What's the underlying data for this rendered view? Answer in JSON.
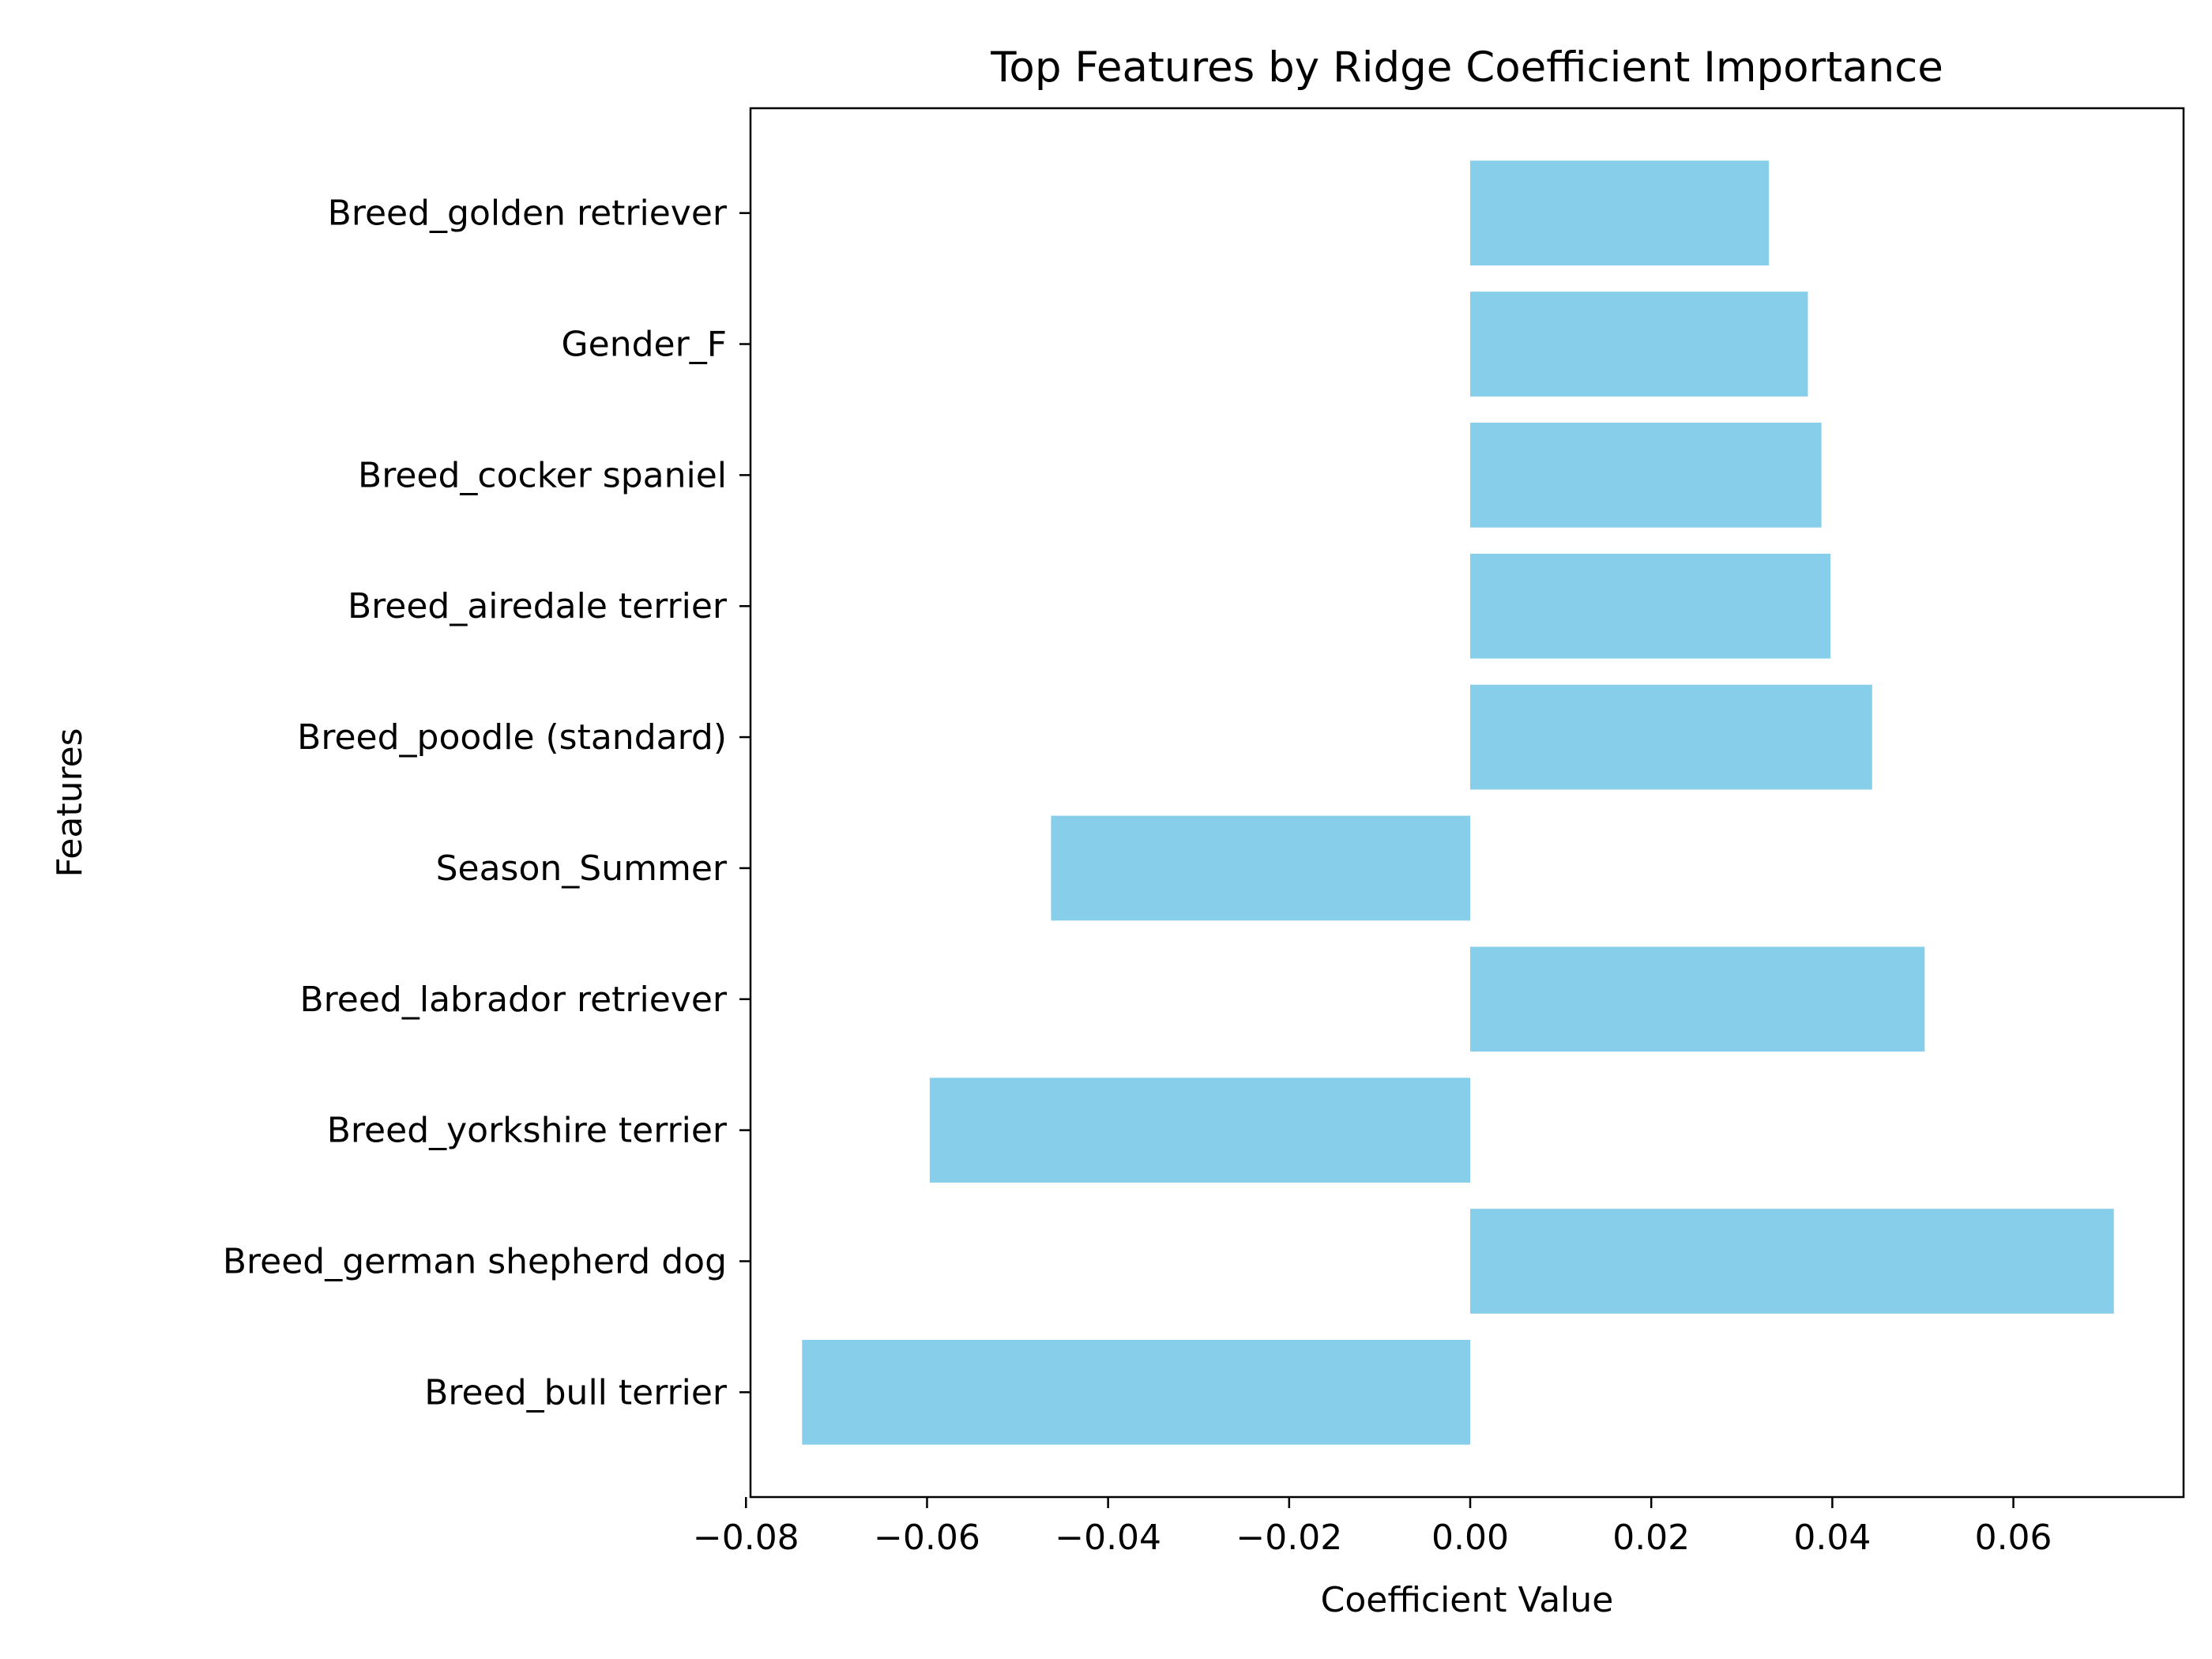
{
  "chart_data": {
    "type": "bar",
    "orientation": "horizontal",
    "title": "Top Features by Ridge Coefficient Importance",
    "xlabel": "Coefficient Value",
    "ylabel": "Features",
    "categories": [
      "Breed_bull terrier",
      "Breed_german shepherd dog",
      "Breed_yorkshire terrier",
      "Breed_labrador retriever",
      "Season_Summer",
      "Breed_poodle (standard)",
      "Breed_airedale terrier",
      "Breed_cocker spaniel",
      "Gender_F",
      "Breed_golden retriever"
    ],
    "values": [
      -0.0738,
      0.0711,
      -0.0597,
      0.0502,
      -0.0463,
      0.0444,
      0.0398,
      0.0388,
      0.0373,
      0.033
    ],
    "xlim": [
      -0.0795,
      0.0788
    ],
    "xticks": [
      -0.08,
      -0.06,
      -0.04,
      -0.02,
      0.0,
      0.02,
      0.04,
      0.06
    ],
    "xtick_labels": [
      "−0.08",
      "−0.06",
      "−0.04",
      "−0.02",
      "0.00",
      "0.02",
      "0.04",
      "0.06"
    ],
    "grid": false,
    "legend": "none",
    "bar_color": "#87ceeb"
  }
}
